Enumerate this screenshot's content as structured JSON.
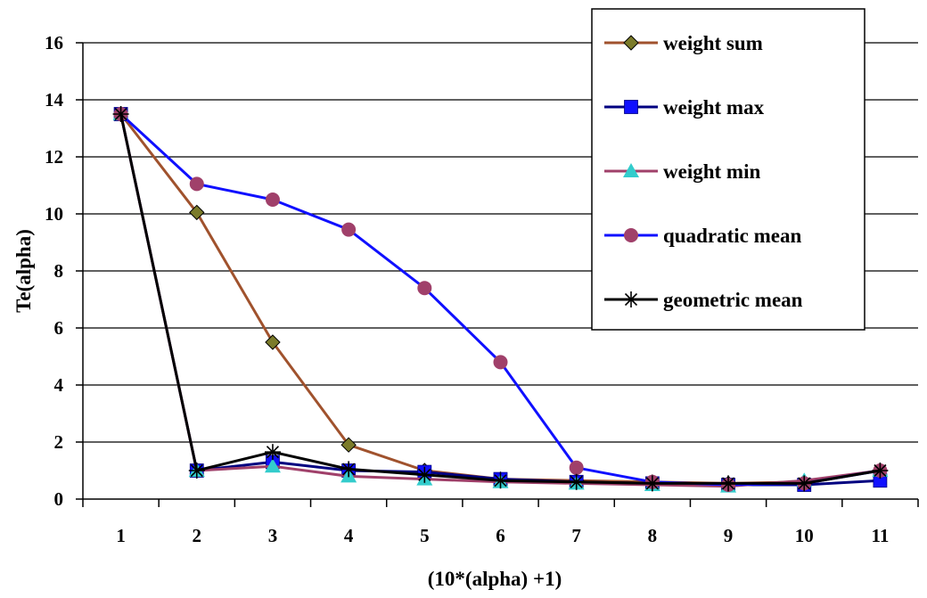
{
  "chart_data": {
    "type": "line",
    "title": "",
    "xlabel": "(10*(alpha) +1)",
    "ylabel": "Te(alpha)",
    "categories": [
      "1",
      "2",
      "3",
      "4",
      "5",
      "6",
      "7",
      "8",
      "9",
      "10",
      "11"
    ],
    "ylim": [
      0,
      16
    ],
    "yticks": [
      "0",
      "2",
      "4",
      "6",
      "8",
      "10",
      "12",
      "14",
      "16"
    ],
    "grid": "horizontal",
    "legend_position": "top-right",
    "series": [
      {
        "name": "weight sum",
        "color": "#a0522d",
        "marker_color": "#7b7b2a",
        "marker": "diamond",
        "values": [
          13.5,
          10.05,
          5.5,
          1.9,
          1.0,
          0.7,
          0.65,
          0.6,
          0.55,
          0.6,
          1.0
        ]
      },
      {
        "name": "weight max",
        "color": "#000080",
        "marker_color": "#1010ff",
        "marker": "square",
        "values": [
          13.5,
          1.0,
          1.3,
          1.0,
          0.95,
          0.7,
          0.6,
          0.55,
          0.5,
          0.5,
          0.65
        ]
      },
      {
        "name": "weight min",
        "color": "#a0406a",
        "marker_color": "#33cccc",
        "marker": "triangle",
        "values": [
          13.5,
          1.0,
          1.15,
          0.8,
          0.7,
          0.6,
          0.55,
          0.5,
          0.45,
          0.65,
          1.0
        ]
      },
      {
        "name": "quadratic mean",
        "color": "#1010ff",
        "marker_color": "#a0406a",
        "marker": "circle",
        "values": [
          13.5,
          11.05,
          10.5,
          9.45,
          7.4,
          4.8,
          1.1,
          0.6,
          0.5,
          0.55,
          1.0
        ]
      },
      {
        "name": "geometric mean",
        "color": "#000000",
        "marker_color": "#000000",
        "marker": "asterisk",
        "values": [
          13.5,
          1.0,
          1.65,
          1.05,
          0.85,
          0.65,
          0.6,
          0.55,
          0.55,
          0.55,
          1.0
        ]
      }
    ]
  }
}
